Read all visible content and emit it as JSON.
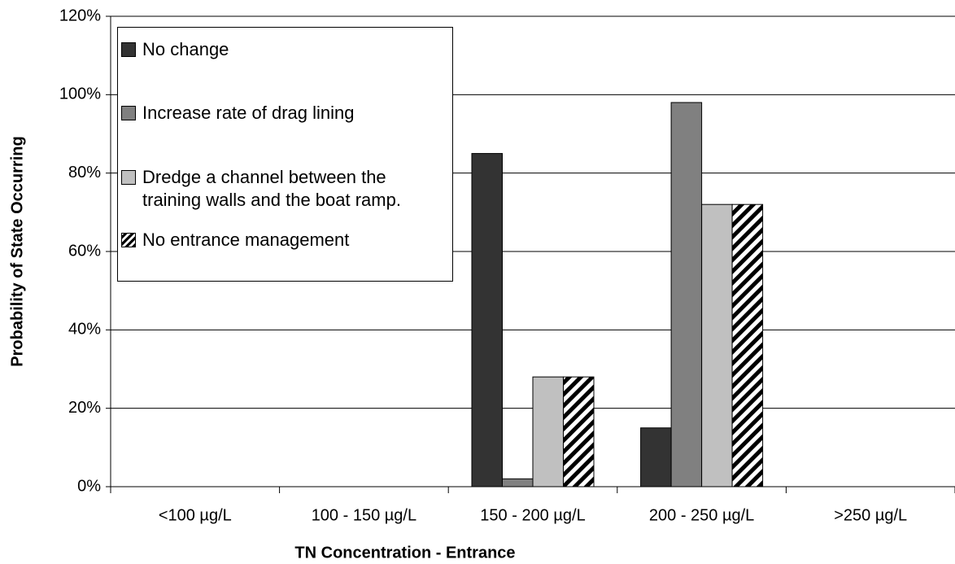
{
  "chart_data": {
    "type": "bar",
    "xlabel": "TN Concentration - Entrance",
    "ylabel": "Probability of State Occurring",
    "categories": [
      "<100 µg/L",
      "100 - 150 µg/L",
      "150 - 200 µg/L",
      "200 - 250 µg/L",
      ">250 µg/L"
    ],
    "series": [
      {
        "name": "No change",
        "color": "#333333",
        "values": [
          0,
          0,
          85,
          15,
          0
        ]
      },
      {
        "name": "Increase rate of drag lining",
        "color": "#808080",
        "values": [
          0,
          0,
          2,
          98,
          0
        ]
      },
      {
        "name": "Dredge a channel between the training walls and the boat ramp.",
        "color": "#c0c0c0",
        "values": [
          0,
          0,
          28,
          72,
          0
        ]
      },
      {
        "name": "No entrance management",
        "color": "#ffffff",
        "pattern": "hatch",
        "values": [
          0,
          0,
          28,
          72,
          0
        ]
      }
    ],
    "ylim": [
      0,
      120
    ],
    "yticks": [
      {
        "value": 0,
        "label": "0%"
      },
      {
        "value": 20,
        "label": "20%"
      },
      {
        "value": 40,
        "label": "40%"
      },
      {
        "value": 60,
        "label": "60%"
      },
      {
        "value": 80,
        "label": "80%"
      },
      {
        "value": 100,
        "label": "100%"
      },
      {
        "value": 120,
        "label": "120%"
      }
    ],
    "grid": true,
    "legend": "upper left"
  }
}
